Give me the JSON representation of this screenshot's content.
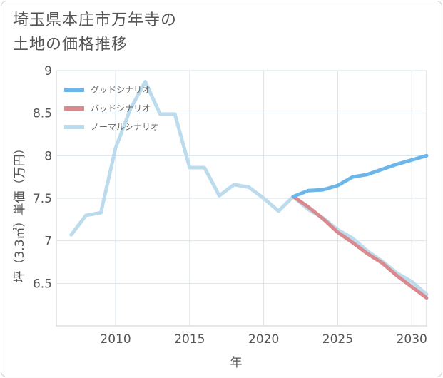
{
  "title_lines": [
    "埼玉県本庄市万年寺の",
    "土地の価格推移"
  ],
  "chart_data": {
    "type": "line",
    "xlabel": "年",
    "ylabel": "坪（3.3㎡）単価（万円）",
    "xlim": [
      2006,
      2031
    ],
    "ylim": [
      6.0,
      9.0
    ],
    "x_ticks": [
      2010,
      2015,
      2020,
      2025,
      2030
    ],
    "y_ticks": [
      6.5,
      7,
      7.5,
      8,
      8.5,
      9
    ],
    "x_tick_labels": [
      "2010",
      "2015",
      "2020",
      "2025",
      "2030"
    ],
    "y_tick_labels": [
      "6.5",
      "7",
      "7.5",
      "8",
      "8.5",
      "9"
    ],
    "legend_position": "top-left",
    "series": [
      {
        "name": "グッドシナリオ",
        "color": "#6cb6ea",
        "x": [
          2022,
          2023,
          2024,
          2025,
          2026,
          2027,
          2028,
          2029,
          2030,
          2031
        ],
        "values": [
          7.52,
          7.59,
          7.6,
          7.65,
          7.75,
          7.78,
          7.84,
          7.9,
          7.95,
          8.0
        ]
      },
      {
        "name": "バッドシナリオ",
        "color": "#d98a8f",
        "x": [
          2022,
          2023,
          2024,
          2025,
          2026,
          2027,
          2028,
          2029,
          2030,
          2031
        ],
        "values": [
          7.52,
          7.4,
          7.26,
          7.1,
          6.98,
          6.85,
          6.74,
          6.59,
          6.46,
          6.33
        ]
      },
      {
        "name": "ノーマルシナリオ",
        "color": "#bcdcee",
        "x": [
          2007,
          2008,
          2009,
          2010,
          2011,
          2012,
          2013,
          2014,
          2015,
          2016,
          2017,
          2018,
          2019,
          2020,
          2021,
          2022,
          2023,
          2024,
          2025,
          2026,
          2027,
          2028,
          2029,
          2030,
          2031
        ],
        "values": [
          7.07,
          7.3,
          7.33,
          8.09,
          8.55,
          8.87,
          8.49,
          8.49,
          7.86,
          7.86,
          7.53,
          7.66,
          7.63,
          7.5,
          7.35,
          7.52,
          7.37,
          7.27,
          7.13,
          7.03,
          6.88,
          6.76,
          6.62,
          6.52,
          6.37
        ]
      }
    ]
  }
}
